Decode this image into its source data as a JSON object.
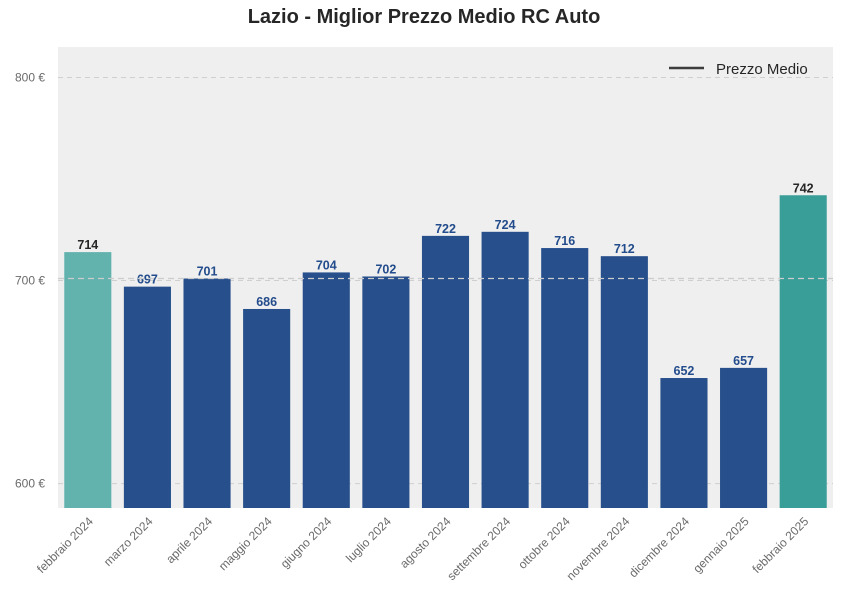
{
  "chart_data": {
    "type": "bar",
    "title": "Lazio - Miglior Prezzo Medio RC Auto",
    "xlabel": "",
    "ylabel": "",
    "categories": [
      "febbraio 2024",
      "marzo 2024",
      "aprile 2024",
      "maggio 2024",
      "giugno 2024",
      "luglio 2024",
      "agosto 2024",
      "settembre 2024",
      "ottobre 2024",
      "novembre 2024",
      "dicembre 2024",
      "gennaio 2025",
      "febbraio 2025"
    ],
    "values": [
      714,
      697,
      701,
      686,
      704,
      702,
      722,
      724,
      716,
      712,
      652,
      657,
      742
    ],
    "labels": [
      "714",
      "697",
      "701",
      "686",
      "704",
      "702",
      "722",
      "724",
      "716",
      "712",
      "652",
      "657",
      "742"
    ],
    "bar_colors": [
      "#62b2ae",
      "#264f8c",
      "#264f8c",
      "#264f8c",
      "#264f8c",
      "#264f8c",
      "#264f8c",
      "#264f8c",
      "#264f8c",
      "#264f8c",
      "#264f8c",
      "#264f8c",
      "#3a9e98"
    ],
    "label_colors": [
      "#262626",
      "#234c8c",
      "#234c8c",
      "#234c8c",
      "#234c8c",
      "#234c8c",
      "#234c8c",
      "#234c8c",
      "#234c8c",
      "#234c8c",
      "#234c8c",
      "#234c8c",
      "#262626"
    ],
    "ylim": [
      588,
      815
    ],
    "yticks": [
      600,
      700,
      800
    ],
    "ytick_labels": [
      "600 €",
      "700 €",
      "800 €"
    ],
    "mean_line": 701,
    "legend": {
      "label": "Prezzo Medio",
      "position": "top-right"
    },
    "grid": true,
    "colors": {
      "background": "#efefef",
      "grid": "#cfcfcf",
      "mean_line": "#cccccc"
    }
  }
}
